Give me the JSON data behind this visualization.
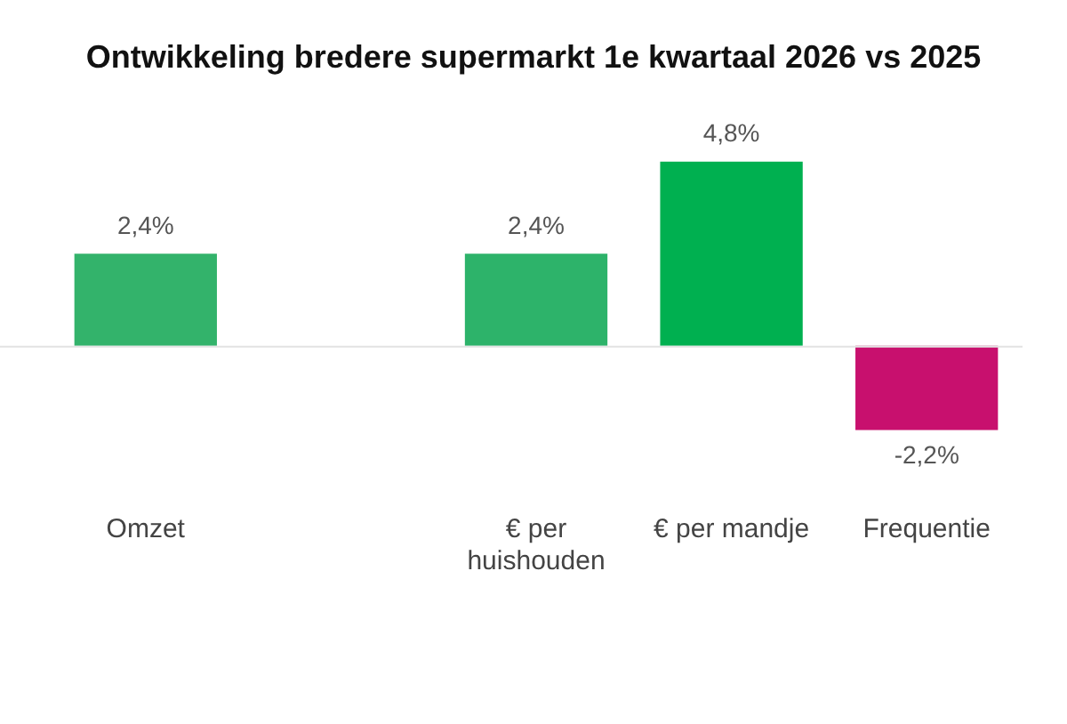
{
  "chart_data": {
    "type": "bar",
    "title": "Ontwikkeling bredere supermarkt 1e kwartaal 2026 vs 2025",
    "categories": [
      "Omzet",
      null,
      "€ per huishouden",
      "€ per mandje",
      "Frequentie"
    ],
    "values": [
      2.4,
      null,
      2.4,
      4.8,
      -2.2
    ],
    "colors": [
      "#33b36b",
      "#33b36b",
      "#2db36a",
      "#00b050",
      "#c8106e"
    ],
    "value_labels": [
      "2,4%",
      null,
      "2,4%",
      "4,8%",
      "-2,2%"
    ],
    "legend": false
  }
}
